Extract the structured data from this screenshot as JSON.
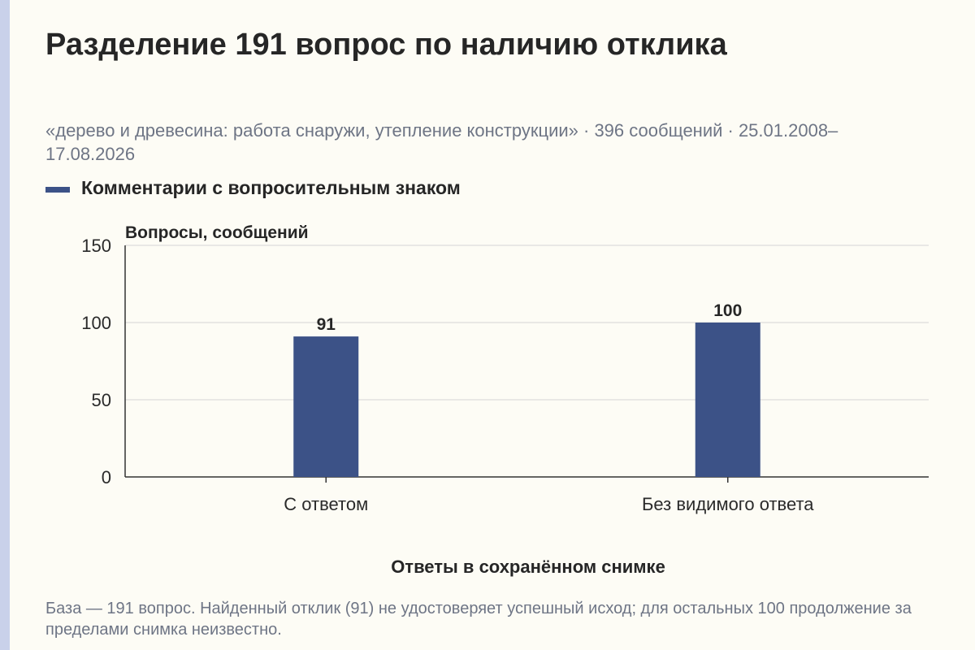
{
  "title": "Разделение 191 вопрос по наличию отклика",
  "subtitle": "«дерево и древесина: работа снаружи, утепление конструкции» · 396 сообщений · 25.01.2008–17.08.2026",
  "footnote": "База — 191 вопрос. Найденный отклик (91) не удостоверяет успешный исход; для остальных 100 продолжение за пределами снимка неизвестно.",
  "colors": {
    "bar": "#3c5287",
    "grid": "#d5d5d5",
    "axis": "#333333",
    "background": "#fdfcf5"
  },
  "chart_data": {
    "type": "bar",
    "title": "Разделение 191 вопрос по наличию отклика",
    "categories": [
      "С ответом",
      "Без видимого ответа"
    ],
    "series": [
      {
        "name": "Комментарии с вопросительным знаком",
        "values": [
          91,
          100
        ]
      }
    ],
    "data_labels": [
      "91",
      "100"
    ],
    "xlabel": "Ответы в сохранённом снимке",
    "ylabel": "Вопросы, сообщений",
    "ylim": [
      0,
      150
    ],
    "yticks": [
      0,
      50,
      100,
      150
    ],
    "grid": true,
    "legend": "top-left"
  }
}
